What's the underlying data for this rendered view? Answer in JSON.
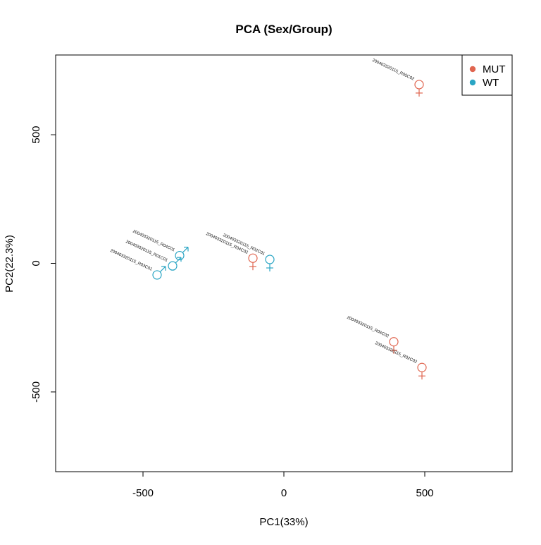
{
  "colors": {
    "MUT": "#e0654f",
    "WT": "#2aa5c4",
    "axis": "#000000",
    "background": "#ffffff"
  },
  "chart_data": {
    "type": "scatter",
    "title": "PCA (Sex/Group)",
    "xlabel": "PC1(33%)",
    "ylabel": "PC2(22.3%)",
    "xlim": [
      -810,
      810
    ],
    "ylim": [
      -810,
      810
    ],
    "x_ticks": [
      -500,
      0,
      500
    ],
    "y_ticks": [
      -500,
      0,
      500
    ],
    "x_tick_labels": [
      "-500",
      "0",
      "500"
    ],
    "y_tick_labels": [
      "-500",
      "0",
      "500"
    ],
    "legend_position": "top-right",
    "legend": [
      {
        "label": "MUT",
        "color": "#e0654f"
      },
      {
        "label": "WT",
        "color": "#2aa5c4"
      }
    ],
    "points": [
      {
        "label": "200403320115_R05C02",
        "x": 480,
        "y": 695,
        "group": "MUT",
        "sex": "female",
        "marker": "circle"
      },
      {
        "label": "200403320115_R06C02",
        "x": 390,
        "y": -305,
        "group": "MUT",
        "sex": "female",
        "marker": "circle"
      },
      {
        "label": "200403320115_R02C02",
        "x": 490,
        "y": -405,
        "group": "MUT",
        "sex": "female",
        "marker": "circle"
      },
      {
        "label": "200403320115_R04C02",
        "x": -110,
        "y": 20,
        "group": "MUT",
        "sex": "female",
        "marker": "circle"
      },
      {
        "label": "200403320115_R02C01",
        "x": -50,
        "y": 15,
        "group": "WT",
        "sex": "female",
        "marker": "circle"
      },
      {
        "label": "200403320115_R04C01",
        "x": -370,
        "y": 30,
        "group": "WT",
        "sex": "male",
        "marker": "circle"
      },
      {
        "label": "200403320115_R01C01",
        "x": -395,
        "y": -10,
        "group": "WT",
        "sex": "male",
        "marker": "circle"
      },
      {
        "label": "200403320115_R03C01",
        "x": -450,
        "y": -45,
        "group": "WT",
        "sex": "male",
        "marker": "circle"
      }
    ]
  }
}
